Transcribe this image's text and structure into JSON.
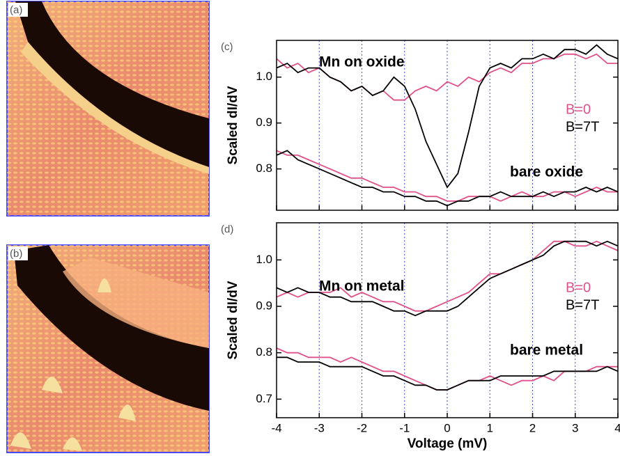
{
  "panels": {
    "a": "(a)",
    "b": "(b)"
  },
  "chart_data": [
    {
      "type": "line",
      "panel": "(c)",
      "ylabel": "Scaled dI/dV",
      "x": [
        -4,
        -3.75,
        -3.5,
        -3.25,
        -3,
        -2.75,
        -2.5,
        -2.25,
        -2,
        -1.75,
        -1.5,
        -1.25,
        -1,
        -0.75,
        -0.5,
        -0.25,
        0,
        0.25,
        0.5,
        0.75,
        1,
        1.25,
        1.5,
        1.75,
        2,
        2.25,
        2.5,
        2.75,
        3,
        3.25,
        3.5,
        3.75,
        4
      ],
      "xlim": [
        -4,
        4
      ],
      "xticks": [
        -4,
        -3,
        -2,
        -1,
        0,
        1,
        2,
        3,
        4
      ],
      "ylim": [
        0.71,
        1.08
      ],
      "yticks": [
        0.8,
        0.9,
        {
          "value": 1,
          "label": "1.0"
        }
      ],
      "grid": true,
      "annotations": [
        "Mn on oxide",
        "bare oxide"
      ],
      "series": [
        {
          "name": "B=0",
          "color": "#e0508a",
          "values": [
            1.04,
            1.02,
            1.03,
            1.01,
            1.02,
            1.0,
            0.99,
            0.97,
            0.98,
            0.96,
            0.97,
            0.95,
            0.95,
            0.97,
            0.98,
            0.97,
            0.99,
            0.98,
            1.0,
            0.99,
            1.01,
            1.02,
            1.01,
            1.03,
            1.03,
            1.04,
            1.04,
            1.05,
            1.05,
            1.04,
            1.05,
            1.03,
            1.03
          ]
        },
        {
          "name": "B=7T",
          "color": "#000000",
          "values": [
            1.02,
            1.03,
            1.01,
            1.02,
            1.02,
            1.0,
            0.99,
            0.97,
            0.98,
            0.96,
            0.97,
            1.0,
            0.98,
            0.93,
            0.86,
            0.81,
            0.76,
            0.79,
            0.88,
            0.98,
            1.02,
            1.03,
            1.02,
            1.04,
            1.04,
            1.05,
            1.04,
            1.06,
            1.06,
            1.05,
            1.07,
            1.05,
            1.04
          ]
        },
        {
          "color": "#e0508a",
          "values": [
            0.84,
            0.83,
            0.83,
            0.82,
            0.81,
            0.8,
            0.79,
            0.78,
            0.78,
            0.77,
            0.76,
            0.76,
            0.75,
            0.75,
            0.74,
            0.74,
            0.73,
            0.73,
            0.74,
            0.74,
            0.74,
            0.73,
            0.74,
            0.75,
            0.74,
            0.74,
            0.75,
            0.75,
            0.74,
            0.75,
            0.76,
            0.75,
            0.75
          ]
        },
        {
          "color": "#000000",
          "values": [
            0.83,
            0.84,
            0.82,
            0.81,
            0.8,
            0.79,
            0.78,
            0.77,
            0.76,
            0.76,
            0.75,
            0.75,
            0.74,
            0.74,
            0.73,
            0.73,
            0.72,
            0.73,
            0.73,
            0.74,
            0.74,
            0.75,
            0.74,
            0.74,
            0.74,
            0.75,
            0.74,
            0.75,
            0.75,
            0.76,
            0.75,
            0.76,
            0.75
          ]
        }
      ]
    },
    {
      "type": "line",
      "panel": "(d)",
      "ylabel": "Scaled dI/dV",
      "xlabel": "Voltage (mV)",
      "x": [
        -4,
        -3.75,
        -3.5,
        -3.25,
        -3,
        -2.75,
        -2.5,
        -2.25,
        -2,
        -1.75,
        -1.5,
        -1.25,
        -1,
        -0.75,
        -0.5,
        -0.25,
        0,
        0.25,
        0.5,
        0.75,
        1,
        1.25,
        1.5,
        1.75,
        2,
        2.25,
        2.5,
        2.75,
        3,
        3.25,
        3.5,
        3.75,
        4
      ],
      "xlim": [
        -4,
        4
      ],
      "xticks": [
        -4,
        -3,
        -2,
        -1,
        0,
        1,
        2,
        3,
        4
      ],
      "ylim": [
        0.66,
        1.08
      ],
      "yticks": [
        0.7,
        0.8,
        0.9,
        {
          "value": 1,
          "label": "1.0"
        }
      ],
      "grid": true,
      "annotations": [
        "Mn on metal",
        "bare metal"
      ],
      "series": [
        {
          "name": "B=0",
          "color": "#e0508a",
          "values": [
            0.92,
            0.93,
            0.92,
            0.93,
            0.93,
            0.93,
            0.94,
            0.92,
            0.93,
            0.92,
            0.91,
            0.91,
            0.9,
            0.89,
            0.89,
            0.9,
            0.91,
            0.92,
            0.93,
            0.95,
            0.97,
            0.97,
            0.98,
            0.99,
            1.0,
            1.02,
            1.04,
            1.04,
            1.03,
            1.03,
            1.04,
            1.03,
            1.02
          ]
        },
        {
          "name": "B=7T",
          "color": "#000000",
          "values": [
            0.94,
            0.93,
            0.94,
            0.93,
            0.93,
            0.92,
            0.92,
            0.91,
            0.91,
            0.91,
            0.9,
            0.89,
            0.89,
            0.88,
            0.89,
            0.89,
            0.89,
            0.9,
            0.92,
            0.94,
            0.96,
            0.97,
            0.98,
            0.99,
            1.0,
            1.01,
            1.03,
            1.04,
            1.04,
            1.04,
            1.03,
            1.04,
            1.03
          ]
        },
        {
          "color": "#e0508a",
          "values": [
            0.81,
            0.8,
            0.8,
            0.79,
            0.79,
            0.79,
            0.78,
            0.79,
            0.78,
            0.77,
            0.76,
            0.76,
            0.75,
            0.74,
            0.73,
            0.72,
            0.72,
            0.73,
            0.74,
            0.74,
            0.75,
            0.74,
            0.73,
            0.74,
            0.74,
            0.75,
            0.74,
            0.76,
            0.76,
            0.76,
            0.77,
            0.77,
            0.77
          ]
        },
        {
          "color": "#000000",
          "values": [
            0.79,
            0.79,
            0.78,
            0.78,
            0.78,
            0.77,
            0.77,
            0.77,
            0.77,
            0.76,
            0.75,
            0.75,
            0.74,
            0.73,
            0.73,
            0.72,
            0.72,
            0.73,
            0.74,
            0.74,
            0.74,
            0.75,
            0.75,
            0.75,
            0.75,
            0.75,
            0.76,
            0.76,
            0.76,
            0.76,
            0.76,
            0.77,
            0.76
          ]
        }
      ]
    }
  ]
}
